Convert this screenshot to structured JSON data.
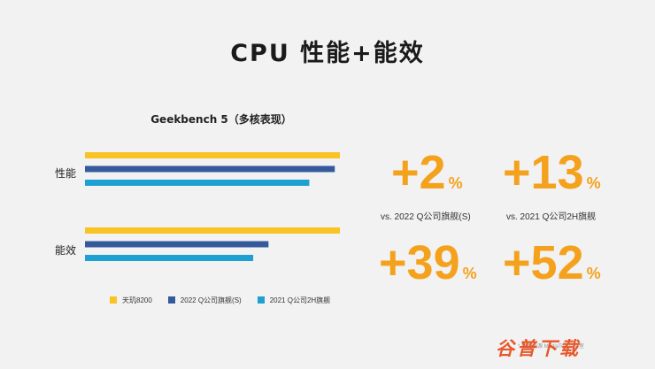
{
  "title": "CPU 性能+能效",
  "chart_data": {
    "type": "bar",
    "orientation": "horizontal",
    "title": "Geekbench 5（多核表现）",
    "categories": [
      "性能",
      "能效"
    ],
    "series": [
      {
        "name": "天玑8200",
        "values": [
          100,
          100
        ]
      },
      {
        "name": "2022 Q公司旗舰(S)",
        "values": [
          98,
          72
        ]
      },
      {
        "name": "2021 Q公司2H旗舰",
        "values": [
          88,
          66
        ]
      }
    ],
    "xlim": [
      0,
      100
    ],
    "grid": false,
    "legend_position": "bottom",
    "colors": [
      "#f9c423",
      "#355a9c",
      "#1da1d2"
    ]
  },
  "highlights": {
    "perf_vs_2022": {
      "value": "+2",
      "unit": "%"
    },
    "perf_vs_2021": {
      "value": "+13",
      "unit": "%"
    },
    "eff_vs_2022": {
      "value": "+39",
      "unit": "%"
    },
    "eff_vs_2021": {
      "value": "+52",
      "unit": "%"
    },
    "vs_2022_label": "vs. 2022 Q公司旗舰(S)",
    "vs_2021_label": "vs. 2021 Q公司2H旗舰"
  },
  "footnote": "* 数据来源 MediaTek 实验室",
  "watermark": "谷普下载"
}
